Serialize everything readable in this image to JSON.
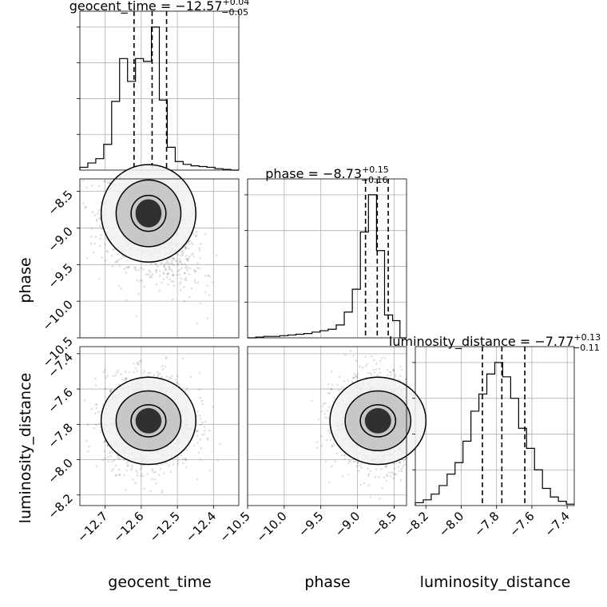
{
  "chart_data": {
    "type": "corner",
    "parameters": [
      "geocent_time",
      "phase",
      "luminosity_distance"
    ],
    "axis_labels": {
      "x": [
        "geocent_time",
        "phase",
        "luminosity_distance"
      ],
      "y": [
        "phase",
        "luminosity_distance"
      ]
    },
    "ranges": {
      "geocent_time": [
        -12.77,
        -12.33
      ],
      "phase": [
        -10.5,
        -8.33
      ],
      "luminosity_distance": [
        -8.26,
        -7.36
      ]
    },
    "ticks": {
      "geocent_time": [
        -12.7,
        -12.6,
        -12.5,
        -12.4
      ],
      "phase_x": [
        -10.5,
        -10.0,
        -9.5,
        -9.0,
        -8.5
      ],
      "phase_y": [
        -8.5,
        -9.0,
        -9.5,
        -10.0,
        -10.5
      ],
      "luminosity_distance_x": [
        -8.2,
        -8.0,
        -7.8,
        -7.6,
        -7.4
      ],
      "luminosity_distance_y": [
        -7.4,
        -7.6,
        -7.8,
        -8.0,
        -8.2
      ]
    },
    "tick_labels": {
      "geocent_time": [
        "−12.7",
        "−12.6",
        "−12.5",
        "−12.4"
      ],
      "phase_x": [
        "−10.5",
        "−10.0",
        "−9.5",
        "−9.0",
        "−8.5"
      ],
      "phase_y": [
        "−8.5",
        "−9.0",
        "−9.5",
        "−10.0",
        "−10.5"
      ],
      "luminosity_distance_x": [
        "−8.2",
        "−8.0",
        "−7.8",
        "−7.6",
        "−7.4"
      ],
      "luminosity_distance_y": [
        "−7.4",
        "−7.6",
        "−7.8",
        "−8.0",
        "−8.2"
      ]
    },
    "titles": [
      {
        "param": "geocent_time",
        "prefix": "geocent_time = −12.57",
        "plus": "+0.04",
        "minus": "−0.05"
      },
      {
        "param": "phase",
        "prefix": "phase = −8.73",
        "plus": "+0.15",
        "minus": "−0.16"
      },
      {
        "param": "luminosity_distance",
        "prefix": "luminosity_distance = −7.77",
        "plus": "+0.13",
        "minus": "−0.11"
      }
    ],
    "quantiles": {
      "geocent_time": [
        -12.62,
        -12.57,
        -12.53
      ],
      "phase": [
        -8.89,
        -8.73,
        -8.58
      ],
      "luminosity_distance": [
        -7.88,
        -7.77,
        -7.64
      ]
    },
    "histograms": {
      "geocent_time": {
        "edges": [
          -12.77,
          -12.748,
          -12.726,
          -12.704,
          -12.682,
          -12.66,
          -12.638,
          -12.616,
          -12.594,
          -12.572,
          -12.55,
          -12.528,
          -12.506,
          -12.484,
          -12.462,
          -12.44,
          -12.418,
          -12.396,
          -12.374,
          -12.352,
          -12.33
        ],
        "counts": [
          2,
          5,
          8,
          18,
          48,
          78,
          62,
          78,
          76,
          100,
          49,
          16,
          6,
          4,
          3,
          2.5,
          2,
          1,
          0.5,
          0
        ]
      },
      "phase": {
        "edges": [
          -10.5,
          -10.39,
          -10.28,
          -10.17,
          -10.06,
          -9.95,
          -9.84,
          -9.73,
          -9.62,
          -9.51,
          -9.4,
          -9.29,
          -9.18,
          -9.07,
          -8.96,
          -8.85,
          -8.74,
          -8.63,
          -8.52,
          -8.42,
          -8.33
        ],
        "counts": [
          0,
          0.5,
          1,
          1,
          1.5,
          2,
          2.5,
          3,
          4,
          5,
          6,
          9,
          18,
          34,
          74,
          100,
          61,
          16,
          12,
          0
        ]
      },
      "luminosity_distance": {
        "edges": [
          -8.26,
          -8.215,
          -8.17,
          -8.125,
          -8.08,
          -8.035,
          -7.99,
          -7.945,
          -7.9,
          -7.855,
          -7.81,
          -7.765,
          -7.72,
          -7.675,
          -7.63,
          -7.585,
          -7.54,
          -7.495,
          -7.45,
          -7.405,
          -7.36
        ],
        "counts": [
          2,
          4,
          8,
          14,
          22,
          30,
          45,
          66,
          78,
          92,
          100,
          90,
          75,
          54,
          40,
          25,
          12,
          6,
          3,
          1
        ]
      }
    },
    "scatter": {
      "phase_vs_geocent_time": {
        "x_center": -12.58,
        "y_center": -8.8,
        "x_sigma": 0.06,
        "y_sigma": 0.35
      },
      "luminosity_distance_vs_geocent_time": {
        "x_center": -12.58,
        "y_center": -7.78,
        "x_sigma": 0.06,
        "y_sigma": 0.13
      },
      "luminosity_distance_vs_phase": {
        "x_center": -8.72,
        "y_center": -7.78,
        "x_sigma": 0.3,
        "y_sigma": 0.13
      }
    },
    "grid": true
  }
}
